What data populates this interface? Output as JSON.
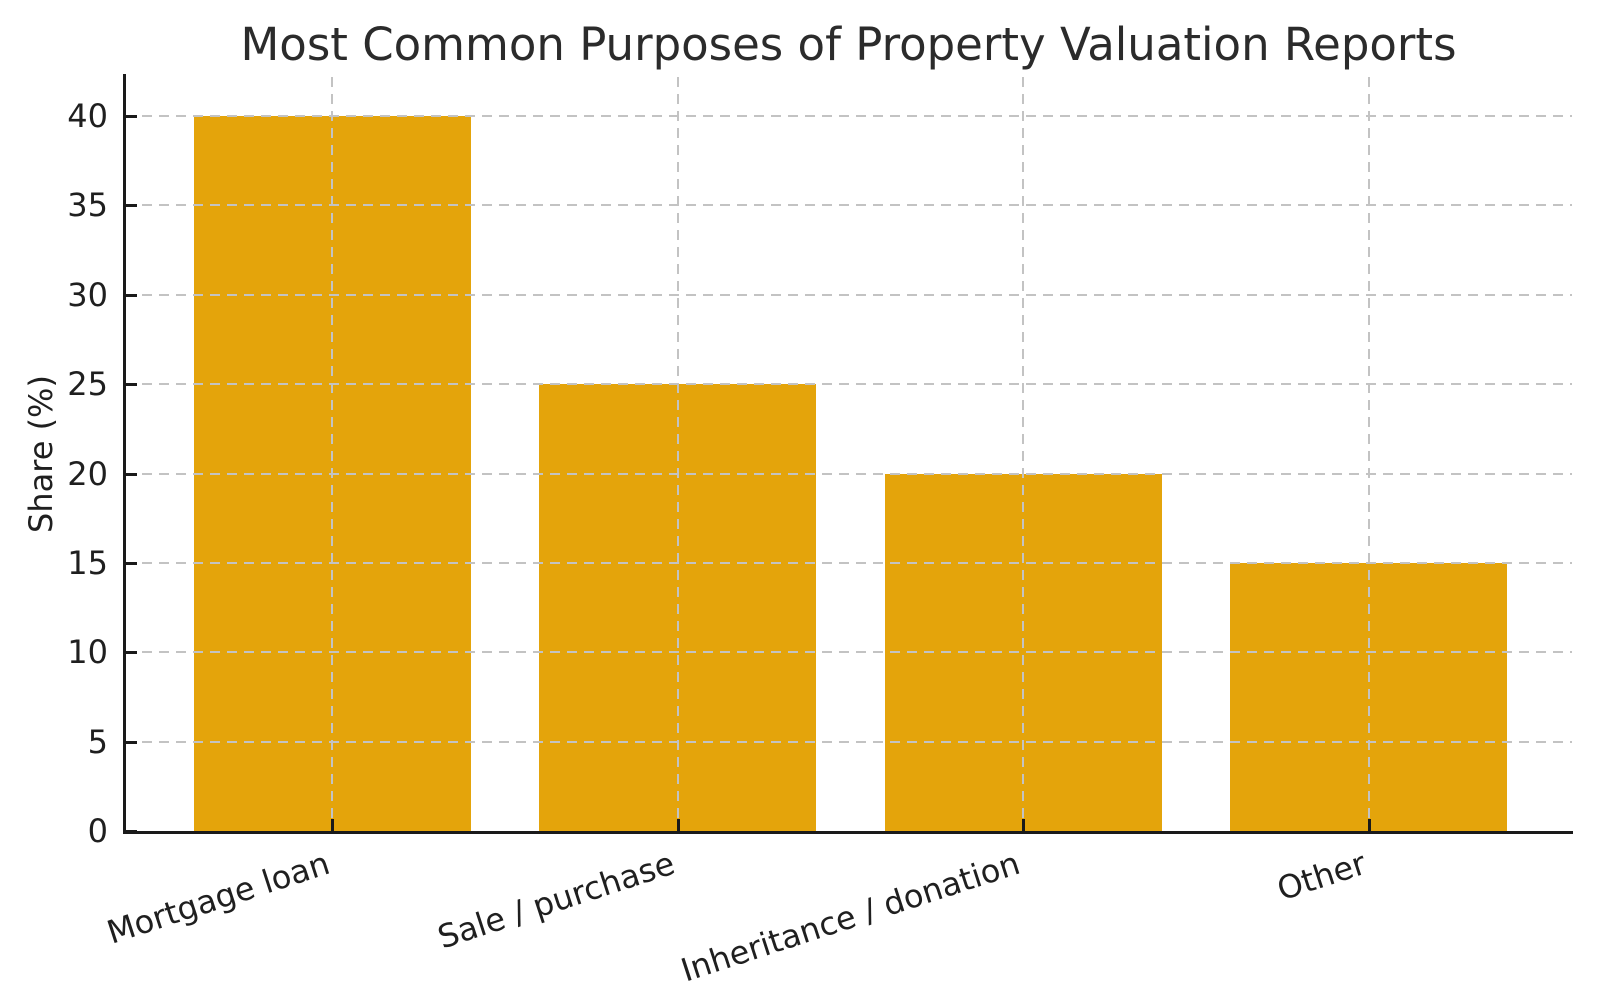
{
  "chart_data": {
    "type": "bar",
    "title": "Most Common Purposes of Property Valuation Reports",
    "ylabel": "Share (%)",
    "xlabel": "",
    "categories": [
      "Mortgage loan",
      "Sale / purchase",
      "Inheritance / donation",
      "Other"
    ],
    "values": [
      40,
      25,
      20,
      15
    ],
    "yticks": [
      0,
      5,
      10,
      15,
      20,
      25,
      30,
      35,
      40
    ],
    "ylim": [
      0,
      42.2
    ],
    "legend": "none",
    "grid": "dashed gridlines on both axes, drawn above bars",
    "tick_direction": "in",
    "bar_color": "#E4A40B",
    "grid_color": "#C3C3C3",
    "axis_color": "#1A1A1A",
    "text_color": "#1F1F1F",
    "background_color": "#FFFFFF"
  }
}
